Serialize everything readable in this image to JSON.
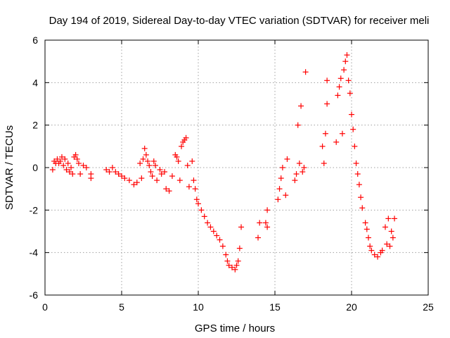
{
  "chart_data": {
    "type": "scatter",
    "title": "Day 194 of 2019, Sidereal Day-to-day VTEC variation (SDTVAR) for receiver meli",
    "xlabel": "GPS time / hours",
    "ylabel": "SDTVAR / TECUs",
    "xlim": [
      0,
      25
    ],
    "ylim": [
      -6,
      6
    ],
    "xticks": [
      0,
      5,
      10,
      15,
      20,
      25
    ],
    "yticks": [
      -6,
      -4,
      -2,
      0,
      2,
      4,
      6
    ],
    "grid": true,
    "marker": "plus",
    "color": "#ff0000",
    "series": [
      {
        "name": "SDTVAR",
        "points": [
          [
            0.5,
            -0.1
          ],
          [
            0.6,
            0.3
          ],
          [
            0.7,
            0.2
          ],
          [
            0.8,
            0.4
          ],
          [
            0.9,
            0.2
          ],
          [
            1.0,
            0.3
          ],
          [
            1.1,
            0.5
          ],
          [
            1.2,
            0.1
          ],
          [
            1.3,
            0.4
          ],
          [
            1.4,
            -0.1
          ],
          [
            1.5,
            0.2
          ],
          [
            1.6,
            -0.2
          ],
          [
            1.7,
            0.0
          ],
          [
            1.8,
            -0.3
          ],
          [
            1.9,
            0.5
          ],
          [
            2.0,
            0.6
          ],
          [
            2.1,
            0.4
          ],
          [
            2.2,
            0.2
          ],
          [
            2.3,
            -0.3
          ],
          [
            2.5,
            0.1
          ],
          [
            2.7,
            0.0
          ],
          [
            3.0,
            -0.3
          ],
          [
            3.0,
            -0.5
          ],
          [
            4.0,
            -0.1
          ],
          [
            4.2,
            -0.2
          ],
          [
            4.4,
            0.0
          ],
          [
            4.6,
            -0.2
          ],
          [
            4.8,
            -0.3
          ],
          [
            5.0,
            -0.4
          ],
          [
            5.2,
            -0.5
          ],
          [
            5.5,
            -0.6
          ],
          [
            5.8,
            -0.8
          ],
          [
            6.0,
            -0.7
          ],
          [
            6.2,
            0.2
          ],
          [
            6.3,
            -0.5
          ],
          [
            6.4,
            0.4
          ],
          [
            6.5,
            0.9
          ],
          [
            6.6,
            0.6
          ],
          [
            6.7,
            0.3
          ],
          [
            6.8,
            0.1
          ],
          [
            6.9,
            -0.2
          ],
          [
            7.0,
            -0.4
          ],
          [
            7.1,
            0.3
          ],
          [
            7.2,
            0.1
          ],
          [
            7.3,
            -0.6
          ],
          [
            7.5,
            -0.1
          ],
          [
            7.6,
            -0.3
          ],
          [
            7.8,
            -0.2
          ],
          [
            7.9,
            -1.0
          ],
          [
            8.1,
            -1.1
          ],
          [
            8.3,
            -0.4
          ],
          [
            8.5,
            0.6
          ],
          [
            8.6,
            0.5
          ],
          [
            8.7,
            0.3
          ],
          [
            8.8,
            -0.6
          ],
          [
            8.9,
            1.0
          ],
          [
            9.0,
            1.2
          ],
          [
            9.1,
            1.3
          ],
          [
            9.2,
            1.4
          ],
          [
            9.3,
            0.1
          ],
          [
            9.4,
            -0.9
          ],
          [
            9.6,
            0.3
          ],
          [
            9.7,
            -0.6
          ],
          [
            9.8,
            -1.0
          ],
          [
            9.9,
            -1.5
          ],
          [
            10.0,
            -1.7
          ],
          [
            10.2,
            -2.0
          ],
          [
            10.4,
            -2.3
          ],
          [
            10.6,
            -2.6
          ],
          [
            10.8,
            -2.8
          ],
          [
            11.0,
            -3.0
          ],
          [
            11.2,
            -3.2
          ],
          [
            11.4,
            -3.4
          ],
          [
            11.6,
            -3.7
          ],
          [
            11.8,
            -4.1
          ],
          [
            11.9,
            -4.4
          ],
          [
            12.0,
            -4.6
          ],
          [
            12.2,
            -4.7
          ],
          [
            12.4,
            -4.8
          ],
          [
            12.5,
            -4.6
          ],
          [
            12.6,
            -4.4
          ],
          [
            12.7,
            -3.8
          ],
          [
            12.8,
            -2.8
          ],
          [
            13.9,
            -3.3
          ],
          [
            14.0,
            -2.6
          ],
          [
            14.4,
            -2.6
          ],
          [
            14.5,
            -2.8
          ],
          [
            14.5,
            -2.0
          ],
          [
            15.2,
            -1.5
          ],
          [
            15.3,
            -1.0
          ],
          [
            15.4,
            -0.5
          ],
          [
            15.5,
            0.0
          ],
          [
            15.7,
            -1.3
          ],
          [
            15.8,
            0.4
          ],
          [
            16.3,
            -0.6
          ],
          [
            16.4,
            -0.3
          ],
          [
            16.5,
            2.0
          ],
          [
            16.6,
            0.2
          ],
          [
            16.7,
            2.9
          ],
          [
            16.8,
            -0.2
          ],
          [
            16.9,
            0.0
          ],
          [
            17.0,
            4.5
          ],
          [
            18.1,
            1.0
          ],
          [
            18.2,
            0.2
          ],
          [
            18.3,
            1.6
          ],
          [
            18.4,
            3.0
          ],
          [
            18.4,
            4.1
          ],
          [
            19.0,
            1.2
          ],
          [
            19.1,
            3.4
          ],
          [
            19.2,
            3.8
          ],
          [
            19.3,
            4.2
          ],
          [
            19.4,
            1.6
          ],
          [
            19.5,
            4.6
          ],
          [
            19.6,
            5.0
          ],
          [
            19.7,
            5.3
          ],
          [
            19.8,
            4.1
          ],
          [
            19.9,
            3.5
          ],
          [
            20.0,
            2.5
          ],
          [
            20.1,
            1.8
          ],
          [
            20.2,
            1.0
          ],
          [
            20.3,
            0.2
          ],
          [
            20.4,
            -0.3
          ],
          [
            20.5,
            -0.8
          ],
          [
            20.6,
            -1.4
          ],
          [
            20.7,
            -1.9
          ],
          [
            20.9,
            -2.6
          ],
          [
            21.0,
            -2.9
          ],
          [
            21.1,
            -3.3
          ],
          [
            21.2,
            -3.7
          ],
          [
            21.3,
            -3.9
          ],
          [
            21.5,
            -4.1
          ],
          [
            21.7,
            -4.2
          ],
          [
            21.9,
            -4.0
          ],
          [
            22.0,
            -3.9
          ],
          [
            22.2,
            -2.8
          ],
          [
            22.3,
            -3.6
          ],
          [
            22.4,
            -2.4
          ],
          [
            22.5,
            -3.7
          ],
          [
            22.6,
            -3.0
          ],
          [
            22.7,
            -3.3
          ],
          [
            22.8,
            -2.4
          ]
        ]
      }
    ]
  }
}
